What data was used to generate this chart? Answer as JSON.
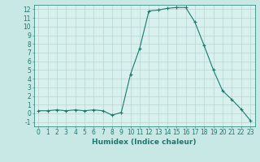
{
  "x": [
    0,
    1,
    2,
    3,
    4,
    5,
    6,
    7,
    8,
    9,
    10,
    11,
    12,
    13,
    14,
    15,
    16,
    17,
    18,
    19,
    20,
    21,
    22,
    23
  ],
  "y": [
    0.3,
    0.3,
    0.4,
    0.3,
    0.4,
    0.3,
    0.4,
    0.3,
    -0.2,
    0.1,
    4.5,
    7.5,
    11.8,
    11.9,
    12.1,
    12.2,
    12.2,
    10.5,
    7.8,
    5.0,
    2.6,
    1.6,
    0.5,
    -0.8
  ],
  "line_color": "#1a7a6e",
  "marker": "+",
  "bg_color": "#c8e8e5",
  "grid_color": "#b0cfcc",
  "inner_bg": "#d8f0ee",
  "xlabel": "Humidex (Indice chaleur)",
  "ylim": [
    -1.5,
    12.5
  ],
  "xlim": [
    -0.5,
    23.5
  ],
  "yticks": [
    -1,
    0,
    1,
    2,
    3,
    4,
    5,
    6,
    7,
    8,
    9,
    10,
    11,
    12
  ],
  "xticks": [
    0,
    1,
    2,
    3,
    4,
    5,
    6,
    7,
    8,
    9,
    10,
    11,
    12,
    13,
    14,
    15,
    16,
    17,
    18,
    19,
    20,
    21,
    22,
    23
  ],
  "tick_color": "#1a7a6e",
  "label_color": "#1a7a6e",
  "font_size": 5.5,
  "xlabel_fontsize": 6.5,
  "linewidth": 0.8,
  "markersize": 2.5,
  "markeredgewidth": 0.8
}
